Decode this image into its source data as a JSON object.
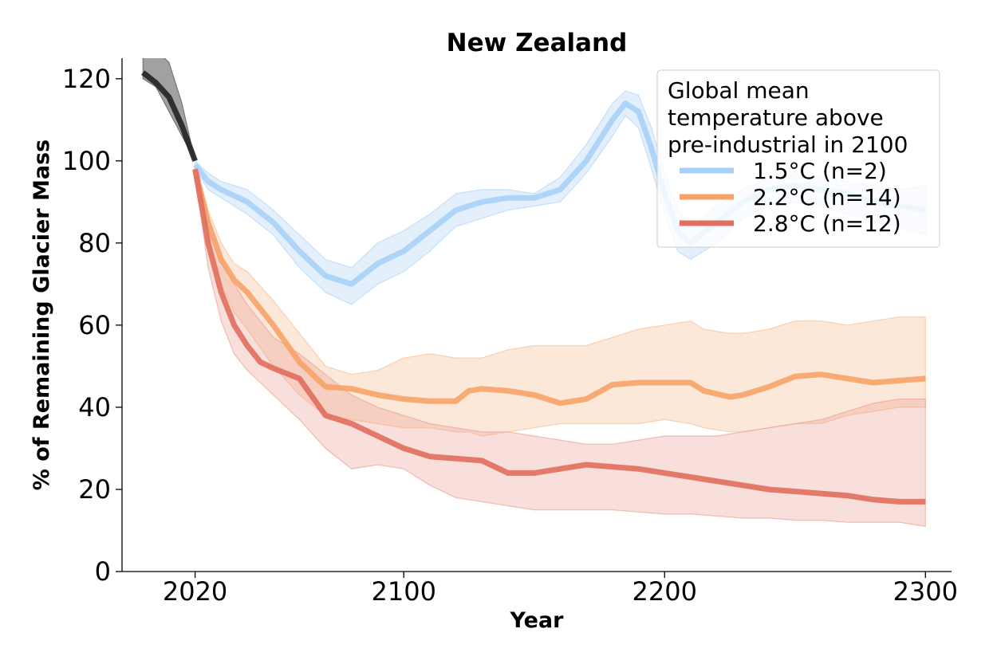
{
  "chart_data": {
    "type": "line",
    "title": "New Zealand",
    "xlabel": "Year",
    "ylabel": "% of Remaining Glacier Mass",
    "xlim": [
      1992,
      2310
    ],
    "ylim": [
      0,
      125
    ],
    "x_ticks": [
      2020,
      2100,
      2200,
      2300
    ],
    "y_ticks": [
      0,
      20,
      40,
      60,
      80,
      100,
      120
    ],
    "x_tick_labels": [
      "2020",
      "2100",
      "2200",
      "2300"
    ],
    "y_tick_labels": [
      "0",
      "20",
      "40",
      "60",
      "80",
      "100",
      "120"
    ],
    "grid": false,
    "legend": {
      "position": "top-right",
      "title": [
        "Global mean",
        "temperature above",
        "pre-industrial in 2100"
      ]
    },
    "historical": {
      "color": "#222222",
      "band_color": "#444444",
      "x": [
        2000,
        2005,
        2010,
        2015,
        2020
      ],
      "values": [
        121.5,
        119,
        115.5,
        108.5,
        100
      ],
      "upper": [
        130,
        127,
        124,
        114,
        100
      ],
      "lower": [
        120,
        118,
        112,
        106,
        100
      ]
    },
    "series": [
      {
        "name": "1.5°C (n=2)",
        "color": "#a9d1f7",
        "band_color": "#a9d1f7",
        "x": [
          2020,
          2025,
          2030,
          2040,
          2050,
          2060,
          2070,
          2080,
          2090,
          2100,
          2110,
          2120,
          2130,
          2140,
          2150,
          2160,
          2170,
          2180,
          2185,
          2190,
          2195,
          2200,
          2205,
          2210,
          2220,
          2230,
          2240,
          2250,
          2260,
          2270,
          2280,
          2290,
          2300
        ],
        "values": [
          99,
          95,
          93,
          90,
          85,
          78,
          72,
          70,
          75,
          78,
          83,
          88,
          90,
          91,
          91,
          93,
          100,
          110,
          114,
          112,
          103,
          92,
          83,
          80,
          85,
          90,
          93,
          94,
          93,
          92,
          90,
          89,
          88
        ],
        "upper": [
          100,
          97,
          95,
          93,
          88,
          82,
          76,
          74,
          80,
          83,
          87,
          92,
          93,
          93,
          92,
          96,
          104,
          114,
          117,
          116,
          108,
          97,
          88,
          84,
          89,
          93,
          96,
          97,
          96,
          95,
          94,
          93,
          94
        ],
        "lower": [
          98,
          93,
          91,
          87,
          82,
          74,
          68,
          65,
          70,
          73,
          78,
          84,
          86,
          88,
          89,
          90,
          97,
          106,
          111,
          108,
          98,
          87,
          78,
          76,
          80,
          86,
          89,
          90,
          89,
          87,
          85,
          84,
          82
        ]
      },
      {
        "name": "2.2°C (n=14)",
        "color": "#f6a46a",
        "band_color": "#f6b98a",
        "x": [
          2020,
          2025,
          2030,
          2035,
          2040,
          2050,
          2060,
          2070,
          2080,
          2090,
          2100,
          2110,
          2120,
          2125,
          2130,
          2140,
          2150,
          2160,
          2170,
          2180,
          2190,
          2200,
          2210,
          2215,
          2225,
          2230,
          2240,
          2250,
          2260,
          2270,
          2280,
          2290,
          2300
        ],
        "values": [
          98,
          85,
          76,
          71,
          68,
          60,
          51,
          45,
          44.5,
          43,
          42,
          41.5,
          41.5,
          44,
          44.5,
          44,
          43,
          41,
          42,
          45.5,
          46,
          46,
          46,
          44,
          42.5,
          43,
          45,
          47.5,
          48,
          47,
          46,
          46.5,
          47
        ],
        "upper": [
          99,
          88,
          80,
          75,
          73,
          66,
          58,
          50,
          48,
          49,
          52,
          53,
          52,
          52,
          52,
          54,
          55,
          55,
          55,
          57,
          59,
          60,
          61,
          59,
          58,
          58,
          59,
          61,
          61,
          60,
          61,
          62,
          62
        ],
        "lower": [
          97,
          81,
          70,
          63,
          59,
          50,
          43,
          38,
          37,
          36,
          35,
          35,
          34,
          34,
          33,
          34,
          35,
          36,
          36,
          36,
          36,
          37,
          36,
          35,
          34,
          34,
          35,
          36,
          36,
          38,
          39,
          40,
          40
        ]
      },
      {
        "name": "2.8°C (n=12)",
        "color": "#e07060",
        "band_color": "#e89a8e",
        "x": [
          2020,
          2025,
          2030,
          2035,
          2040,
          2045,
          2050,
          2060,
          2070,
          2080,
          2090,
          2100,
          2110,
          2120,
          2130,
          2140,
          2150,
          2160,
          2170,
          2180,
          2190,
          2200,
          2210,
          2220,
          2230,
          2240,
          2250,
          2260,
          2270,
          2280,
          2290,
          2300
        ],
        "values": [
          98,
          80,
          68,
          60,
          55,
          51,
          49.5,
          47,
          38,
          36,
          33,
          30,
          28,
          27.5,
          27,
          24,
          24,
          25,
          26,
          25.5,
          25,
          24,
          23,
          22,
          21,
          20,
          19.5,
          19,
          18.5,
          17.5,
          17,
          17
        ],
        "upper": [
          99,
          86,
          76,
          70,
          65,
          61,
          57,
          53,
          48,
          43,
          40,
          38,
          36,
          35,
          34,
          34,
          33,
          32,
          31,
          31,
          32,
          33,
          33,
          33,
          34,
          35,
          36,
          37,
          39,
          41,
          42,
          42
        ],
        "lower": [
          97,
          74,
          61,
          53,
          49,
          46,
          43,
          37,
          30,
          25,
          26,
          25,
          21,
          18,
          17,
          16,
          15,
          15,
          15,
          15,
          14.5,
          14,
          14,
          13.5,
          13,
          13,
          12.5,
          12.5,
          12,
          12,
          12,
          11
        ]
      }
    ]
  }
}
